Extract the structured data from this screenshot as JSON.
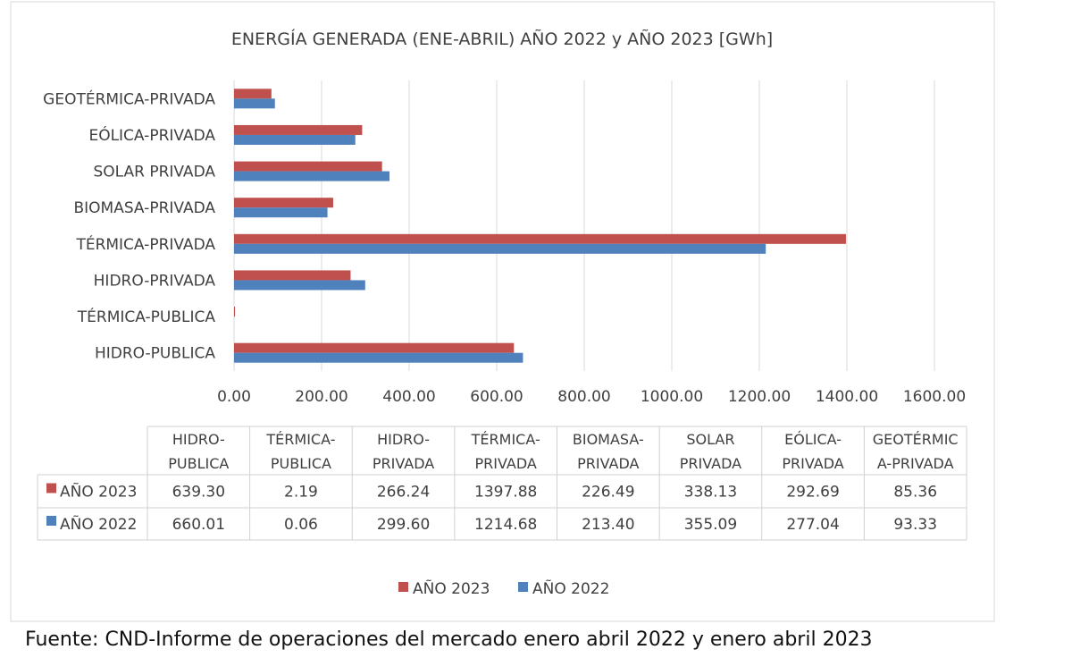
{
  "chart_data": {
    "type": "bar",
    "orientation": "horizontal",
    "title": "ENERGÍA GENERADA (ENE-ABRIL) AÑO 2022 y AÑO 2023 [GWh]",
    "categories": [
      "HIDRO-PUBLICA",
      "TÉRMICA-PUBLICA",
      "HIDRO-PRIVADA",
      "TÉRMICA-PRIVADA",
      "BIOMASA-PRIVADA",
      "SOLAR PRIVADA",
      "EÓLICA-PRIVADA",
      "GEOTÉRMICA-PRIVADA"
    ],
    "table_headers": [
      [
        "HIDRO-",
        "PUBLICA"
      ],
      [
        "TÉRMICA-",
        "PUBLICA"
      ],
      [
        "HIDRO-",
        "PRIVADA"
      ],
      [
        "TÉRMICA-",
        "PRIVADA"
      ],
      [
        "BIOMASA-",
        "PRIVADA"
      ],
      [
        "SOLAR",
        "PRIVADA"
      ],
      [
        "EÓLICA-",
        "PRIVADA"
      ],
      [
        "GEOTÉRMIC",
        "A-PRIVADA"
      ]
    ],
    "series": [
      {
        "name": "AÑO 2023",
        "color": "#C0504D",
        "values": [
          639.3,
          2.19,
          266.24,
          1397.88,
          226.49,
          338.13,
          292.69,
          85.36
        ],
        "labels": [
          "639.30",
          "2.19",
          "266.24",
          "1397.88",
          "226.49",
          "338.13",
          "292.69",
          "85.36"
        ]
      },
      {
        "name": "AÑO 2022",
        "color": "#4F81BD",
        "values": [
          660.01,
          0.06,
          299.6,
          1214.68,
          213.4,
          355.09,
          277.04,
          93.33
        ],
        "labels": [
          "660.01",
          "0.06",
          "299.60",
          "1214.68",
          "213.40",
          "355.09",
          "277.04",
          "93.33"
        ]
      }
    ],
    "xlim": [
      0,
      1600
    ],
    "xticks": [
      "0.00",
      "200.00",
      "400.00",
      "600.00",
      "800.00",
      "1000.00",
      "1200.00",
      "1400.00",
      "1600.00"
    ],
    "grid": true,
    "legend": "bottom"
  },
  "footer": "Fuente: CND-Informe de operaciones del mercado enero abril 2022 y enero abril 2023"
}
